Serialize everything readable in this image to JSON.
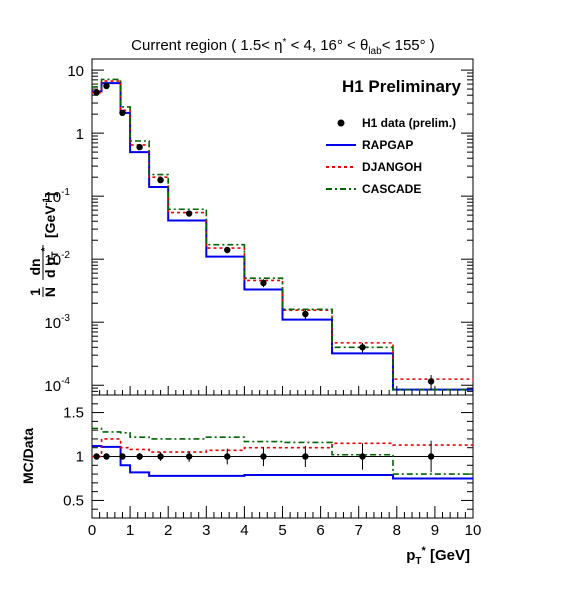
{
  "chart_data": [
    {
      "type": "line",
      "panel": "main",
      "title": "Current region ( 1.5< η* < 4, 16° < θlab< 155° )",
      "title_parts": {
        "prefix": "Current region ( 1.5< η",
        "star": "*",
        "mid": " < 4, 16° < θ",
        "sub": "lab",
        "suffix": "< 155° )"
      },
      "annotation": "H1 Preliminary",
      "ylabel": "1/N dn/dpT* [GeV^-1]",
      "ylabel_parts": {
        "frac_num": "1",
        "frac_den": "N",
        "d_num": "dn",
        "d_den": "d p",
        "d_den_sub": "T",
        "d_den_star": "*",
        "unit": "[GeV",
        "unit_sup": "-1",
        "unit_end": "]"
      },
      "y_scale": "log",
      "ylim": [
        7e-05,
        15
      ],
      "xlim": [
        0,
        10
      ],
      "y_tick_labels": [
        {
          "value": 10,
          "label": "10"
        },
        {
          "value": 1,
          "label": "1"
        },
        {
          "value": 0.1,
          "label": "10",
          "exp": "-1"
        },
        {
          "value": 0.01,
          "label": "10",
          "exp": "-2"
        },
        {
          "value": 0.001,
          "label": "10",
          "exp": "-3"
        },
        {
          "value": 0.0001,
          "label": "10",
          "exp": "-4"
        }
      ],
      "bin_edges": [
        0,
        0.25,
        0.5,
        0.75,
        1,
        1.5,
        2,
        3,
        4,
        5,
        6.3,
        7.9,
        10
      ],
      "legend_position": "right",
      "series": [
        {
          "name": "H1 data (prelim.)",
          "kind": "points",
          "color": "#000000",
          "x": [
            0.12,
            0.38,
            0.8,
            1.25,
            1.8,
            2.55,
            3.55,
            4.5,
            5.6,
            7.1,
            8.9
          ],
          "values": [
            4.4,
            5.6,
            2.1,
            0.6,
            0.18,
            0.053,
            0.014,
            0.0042,
            0.00135,
            0.0004,
            0.000115
          ],
          "errors_up": [
            0,
            0,
            0,
            0,
            0,
            0,
            0.0016,
            0.0006,
            0.00025,
            7e-05,
            3e-05
          ]
        },
        {
          "name": "RAPGAP",
          "kind": "step",
          "color": "#0000ee",
          "dash": "",
          "values": [
            4.6,
            6.2,
            6.2,
            2.1,
            0.5,
            0.14,
            0.041,
            0.011,
            0.0033,
            0.0011,
            0.00032,
            8.5e-05
          ]
        },
        {
          "name": "DJANGOH",
          "kind": "step",
          "color": "#ee0000",
          "dash": "3,3",
          "values": [
            4.4,
            6.7,
            6.7,
            2.3,
            0.65,
            0.2,
            0.055,
            0.015,
            0.0046,
            0.00155,
            0.00047,
            0.000125
          ]
        },
        {
          "name": "CASCADE",
          "kind": "step",
          "color": "#006600",
          "dash": "6,3,2,3",
          "values": [
            5.4,
            7.1,
            7.1,
            2.6,
            0.75,
            0.22,
            0.062,
            0.017,
            0.005,
            0.0016,
            0.0004,
            8.5e-05
          ]
        }
      ]
    },
    {
      "type": "line",
      "panel": "ratio",
      "ylabel": "MC/Data",
      "xlabel": "pT* [GeV]",
      "xlabel_parts": {
        "p": "p",
        "sub": "T",
        "star": "*",
        "unit": " [GeV]"
      },
      "ylim": [
        0.3,
        1.7
      ],
      "xlim": [
        0,
        10
      ],
      "y_tick_labels": [
        "0.5",
        "1",
        "1.5"
      ],
      "x_tick_labels": [
        "0",
        "1",
        "2",
        "3",
        "4",
        "5",
        "6",
        "7",
        "8",
        "9",
        "10"
      ],
      "reference_line": 1,
      "bin_edges": [
        0,
        0.25,
        0.5,
        0.75,
        1,
        1.5,
        2,
        3,
        4,
        5,
        6.3,
        7.9,
        10
      ],
      "series": [
        {
          "name": "H1 data (prelim.)",
          "kind": "points",
          "color": "#000000",
          "x": [
            0.12,
            0.38,
            0.8,
            1.25,
            1.8,
            2.55,
            3.55,
            4.5,
            5.6,
            7.1,
            8.9
          ],
          "values": [
            1,
            1,
            1,
            1,
            1,
            1,
            1,
            1,
            1,
            1,
            1
          ],
          "errors": [
            0.02,
            0.02,
            0.03,
            0.04,
            0.05,
            0.06,
            0.09,
            0.11,
            0.12,
            0.15,
            0.18
          ]
        },
        {
          "name": "RAPGAP",
          "kind": "step",
          "color": "#0000ee",
          "dash": "",
          "values": [
            1.12,
            1.11,
            1.11,
            0.9,
            0.82,
            0.78,
            0.78,
            0.78,
            0.79,
            0.79,
            0.79,
            0.75
          ]
        },
        {
          "name": "DJANGOH",
          "kind": "step",
          "color": "#ee0000",
          "dash": "3,3",
          "values": [
            1.0,
            1.2,
            1.2,
            1.1,
            1.08,
            1.05,
            1.05,
            1.07,
            1.1,
            1.1,
            1.15,
            1.13
          ]
        },
        {
          "name": "CASCADE",
          "kind": "step",
          "color": "#006600",
          "dash": "6,3,2,3",
          "values": [
            1.32,
            1.28,
            1.28,
            1.27,
            1.22,
            1.2,
            1.2,
            1.22,
            1.17,
            1.16,
            1.02,
            0.8
          ]
        }
      ]
    }
  ]
}
